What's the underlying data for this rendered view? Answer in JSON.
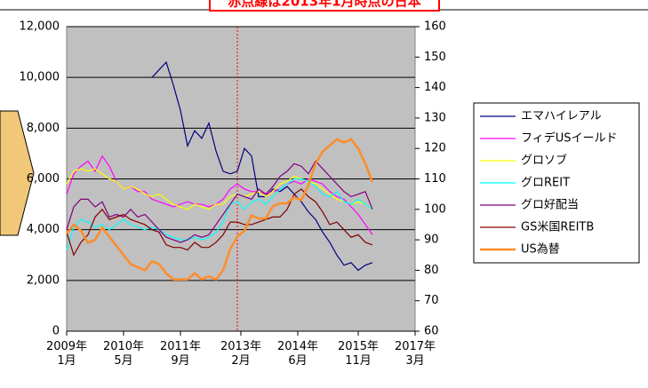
{
  "chart_data": {
    "type": "line",
    "annotation": "赤点線は2013年1月時点の日本",
    "reference_x": 48,
    "x": [
      0,
      2,
      4,
      6,
      8,
      10,
      12,
      14,
      16,
      18,
      20,
      22,
      24,
      26,
      28,
      30,
      32,
      34,
      36,
      38,
      40,
      42,
      44,
      46,
      48,
      50,
      52,
      54,
      56,
      58,
      60,
      62,
      64,
      66,
      68,
      70,
      72,
      74,
      76,
      78,
      80,
      82,
      84,
      86
    ],
    "xlim": [
      0,
      98
    ],
    "xticks": [
      {
        "value": 0,
        "label": "2009年\n1月"
      },
      {
        "value": 16,
        "label": "2010年\n5月"
      },
      {
        "value": 32,
        "label": "2011年\n9月"
      },
      {
        "value": 49,
        "label": "2013年\n2月"
      },
      {
        "value": 65,
        "label": "2014年\n6月"
      },
      {
        "value": 82,
        "label": "2015年\n11月"
      },
      {
        "value": 98,
        "label": "2017年\n3月"
      }
    ],
    "ylim": [
      0,
      12000
    ],
    "yticks": [
      0,
      {
        "value": 2000,
        "label": "2,000"
      },
      {
        "value": 4000,
        "label": "4,000"
      },
      {
        "value": 6000,
        "label": "6,000"
      },
      {
        "value": 8000,
        "label": "8,000"
      },
      {
        "value": 10000,
        "label": "10,000"
      },
      {
        "value": 12000,
        "label": "12,000"
      }
    ],
    "y2lim": [
      60,
      160
    ],
    "y2ticks": [
      60,
      70,
      80,
      90,
      100,
      110,
      120,
      130,
      140,
      150,
      160
    ],
    "grid": true,
    "legend": "right",
    "series": [
      {
        "name": "エマハイレアル",
        "color": "#000080",
        "values": [
          null,
          null,
          null,
          null,
          null,
          null,
          null,
          null,
          null,
          null,
          null,
          null,
          10000,
          10300,
          10600,
          9700,
          8700,
          7300,
          7900,
          7600,
          8200,
          7100,
          6300,
          6200,
          6300,
          7200,
          6900,
          5300,
          5300,
          5600,
          5500,
          5700,
          5400,
          5100,
          4700,
          4400,
          3900,
          3500,
          3000,
          2600,
          2700,
          2400,
          2600,
          2700
        ]
      },
      {
        "name": "フィデUSイールド",
        "color": "#ff00ff",
        "values": [
          5400,
          6200,
          6500,
          6700,
          6300,
          6900,
          6500,
          5900,
          5600,
          5700,
          5500,
          5500,
          5200,
          5100,
          5000,
          4900,
          5000,
          5100,
          5000,
          5000,
          4900,
          5000,
          5200,
          5600,
          5800,
          5600,
          5500,
          5500,
          5400,
          5500,
          5600,
          5800,
          5900,
          5800,
          6000,
          5900,
          5800,
          5500,
          5300,
          5200,
          4900,
          4600,
          4200,
          3800
        ]
      },
      {
        "name": "グロソブ",
        "color": "#ffff00",
        "values": [
          5800,
          6300,
          6400,
          6300,
          6400,
          6200,
          6000,
          5900,
          5600,
          5700,
          5600,
          5400,
          5300,
          5400,
          5200,
          5000,
          4900,
          4800,
          5000,
          4900,
          4800,
          5000,
          5000,
          5300,
          5400,
          5300,
          5400,
          5500,
          5300,
          5500,
          5800,
          5900,
          6100,
          6000,
          5900,
          5800,
          5600,
          5400,
          5200,
          5100,
          5000,
          5100,
          5000,
          4800
        ]
      },
      {
        "name": "グロREIT",
        "color": "#00ffff",
        "values": [
          3200,
          4100,
          4400,
          4300,
          4100,
          4200,
          4000,
          4200,
          4400,
          4200,
          4100,
          4000,
          4100,
          4000,
          3800,
          3700,
          3600,
          3600,
          3700,
          3600,
          3700,
          3900,
          4300,
          5000,
          5100,
          4800,
          5100,
          5200,
          5000,
          5300,
          5600,
          5800,
          6000,
          6000,
          5900,
          5700,
          5400,
          5300,
          5500,
          5100,
          5000,
          5200,
          5000,
          4800
        ]
      },
      {
        "name": "グロ好配当",
        "color": "#800080",
        "values": [
          4000,
          4900,
          5200,
          5200,
          4900,
          5100,
          4500,
          4600,
          4500,
          4800,
          4500,
          4600,
          4300,
          4000,
          3700,
          3600,
          3500,
          3600,
          3800,
          3700,
          3800,
          4200,
          4600,
          5000,
          5400,
          5300,
          5200,
          5600,
          5400,
          5700,
          6100,
          6300,
          6600,
          6500,
          6200,
          6700,
          6400,
          6100,
          5800,
          5500,
          5300,
          5400,
          5500,
          4800
        ]
      },
      {
        "name": "GS米国REITB",
        "color": "#800000",
        "values": [
          3900,
          3000,
          3500,
          3800,
          4500,
          4800,
          4400,
          4500,
          4600,
          4400,
          4300,
          4200,
          4000,
          3900,
          3400,
          3300,
          3300,
          3200,
          3500,
          3300,
          3300,
          3500,
          3800,
          4300,
          4300,
          4200,
          4200,
          4300,
          4400,
          4500,
          4500,
          4800,
          5400,
          5600,
          5300,
          5100,
          4700,
          4200,
          4300,
          4000,
          3700,
          3800,
          3500,
          3400
        ]
      },
      {
        "name": "US為替",
        "color": "#ff8c28",
        "axis": "y2",
        "values": [
          92,
          95,
          93,
          89,
          90,
          94,
          91,
          88,
          85,
          82,
          81,
          80,
          83,
          82,
          79,
          77,
          77,
          77,
          79,
          77,
          78,
          77,
          80,
          87,
          91,
          93,
          98,
          97,
          97,
          101,
          102,
          102,
          104,
          103,
          108,
          115,
          119,
          121,
          123,
          122,
          123,
          120,
          115,
          109
        ]
      }
    ]
  }
}
